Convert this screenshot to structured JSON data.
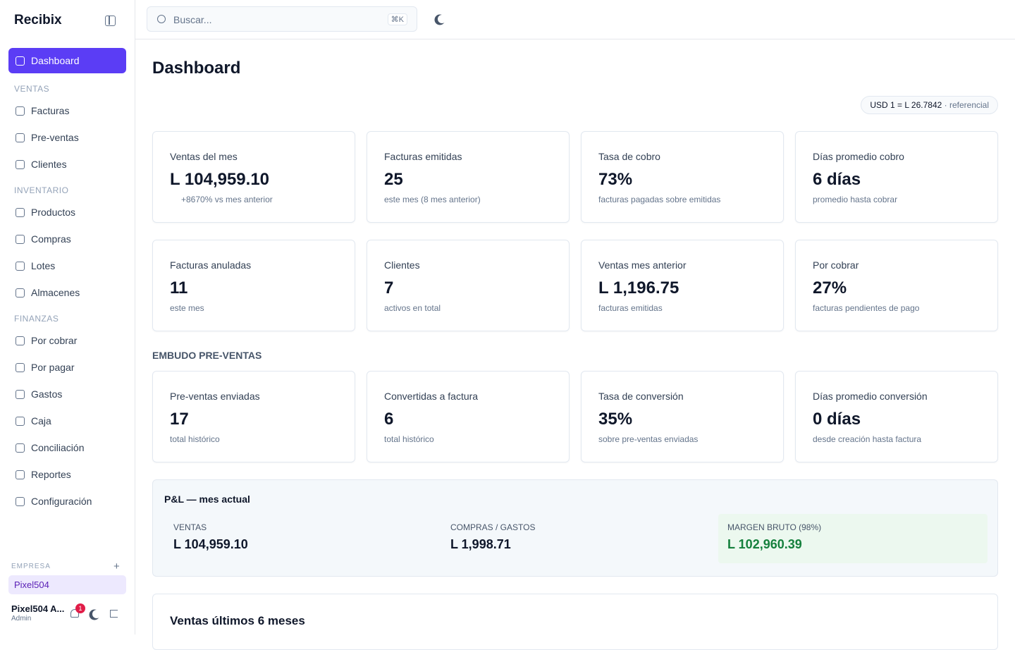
{
  "sidebar": {
    "brand": "Recibix",
    "active": "Dashboard",
    "sections": [
      {
        "title": "VENTAS",
        "items": [
          "Facturas",
          "Pre-ventas",
          "Clientes"
        ]
      },
      {
        "title": "INVENTARIO",
        "items": [
          "Productos",
          "Compras",
          "Lotes",
          "Almacenes"
        ]
      },
      {
        "title": "FINANZAS",
        "items": [
          "Por cobrar",
          "Por pagar",
          "Gastos",
          "Caja",
          "Conciliación",
          "Reportes",
          "Configuración"
        ]
      }
    ],
    "company_label": "EMPRESA",
    "company": "Pixel504",
    "user_name": "Pixel504 A...",
    "user_role": "Admin",
    "notifications": "1"
  },
  "topbar": {
    "search_placeholder": "Buscar...",
    "shortcut": "⌘K"
  },
  "main": {
    "title": "Dashboard",
    "rate": "USD 1 = L 26.7842",
    "rate_note": "· referencial",
    "kpis": [
      {
        "label": "Ventas del mes",
        "value": "L 104,959.10",
        "note": "+8670% vs mes anterior"
      },
      {
        "label": "Facturas emitidas",
        "value": "25",
        "note": "este mes (8 mes anterior)"
      },
      {
        "label": "Tasa de cobro",
        "value": "73%",
        "note": "facturas pagadas sobre emitidas"
      },
      {
        "label": "Días promedio cobro",
        "value": "6 días",
        "note": "promedio hasta cobrar"
      },
      {
        "label": "Facturas anuladas",
        "value": "11",
        "note": "este mes"
      },
      {
        "label": "Clientes",
        "value": "7",
        "note": "activos en total"
      },
      {
        "label": "Ventas mes anterior",
        "value": "L 1,196.75",
        "note": "facturas emitidas"
      },
      {
        "label": "Por cobrar",
        "value": "27%",
        "note": "facturas pendientes de pago"
      }
    ],
    "funnel_title": "EMBUDO PRE-VENTAS",
    "funnel": [
      {
        "label": "Pre-ventas enviadas",
        "value": "17",
        "note": "total histórico"
      },
      {
        "label": "Convertidas a factura",
        "value": "6",
        "note": "total histórico"
      },
      {
        "label": "Tasa de conversión",
        "value": "35%",
        "note": "sobre pre-ventas enviadas"
      },
      {
        "label": "Días promedio conversión",
        "value": "0 días",
        "note": "desde creación hasta factura"
      }
    ],
    "pl": {
      "title": "P&L — mes actual",
      "items": [
        {
          "label": "VENTAS",
          "value": "L 104,959.10"
        },
        {
          "label": "COMPRAS / GASTOS",
          "value": "L 1,998.71"
        },
        {
          "label": "MARGEN BRUTO (98%)",
          "value": "L 102,960.39"
        }
      ]
    },
    "chart_title": "Ventas últimos 6 meses"
  }
}
